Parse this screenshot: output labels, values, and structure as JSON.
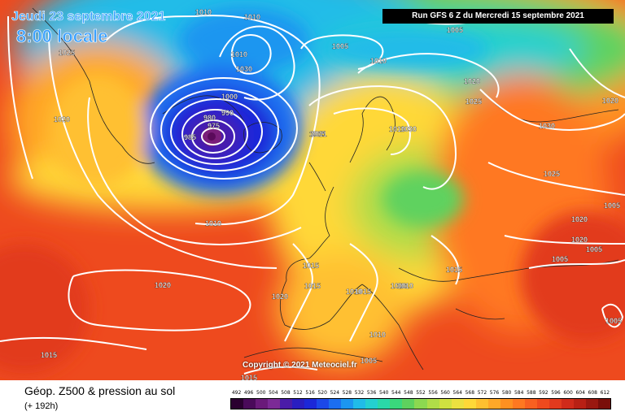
{
  "header": {
    "date_label": "Jeudi 23 septembre 2021",
    "time_label": "8:00 locale",
    "run_label": "Run GFS 6 Z du Mercredi 15 septembre 2021"
  },
  "map": {
    "copyright": "Copyright © 2021 Meteociel.fr",
    "isobar_labels": [
      "1010",
      "1025",
      "1020",
      "1010",
      "1020",
      "1005",
      "1010",
      "1020",
      "1025",
      "1030",
      "1015",
      "1010",
      "1010",
      "1015",
      "1020",
      "1030",
      "1025",
      "1020",
      "1005",
      "1005",
      "1015",
      "1005",
      "1015",
      "1020",
      "1015",
      "1010",
      "1010",
      "1010",
      "1005",
      "1005",
      "1015",
      "1020",
      "1015",
      "985",
      "975",
      "980",
      "990",
      "1000",
      "1010",
      "1011",
      "1010",
      "1030",
      "1005"
    ],
    "colors": {
      "low_center": "#7a1e7a",
      "deep_blue": "#1c1cc8",
      "cyan": "#20c8e8",
      "green": "#5ed25e",
      "yellow": "#ffe040",
      "orange": "#ff8c1e",
      "red": "#e8321e",
      "isobar": "#ffffff"
    }
  },
  "footer": {
    "title": "Géop. Z500 & pression au sol",
    "subtitle": "(+ 192h)",
    "scale_labels": [
      "492",
      "496",
      "500",
      "504",
      "508",
      "512",
      "516",
      "520",
      "524",
      "528",
      "532",
      "536",
      "540",
      "544",
      "548",
      "552",
      "556",
      "560",
      "564",
      "568",
      "572",
      "576",
      "580",
      "584",
      "588",
      "592",
      "596",
      "600",
      "604",
      "608",
      "612"
    ],
    "scale_colors": [
      "#2a0030",
      "#4a0a5a",
      "#6a1a7a",
      "#7c2a96",
      "#4a1ca8",
      "#2a1ec0",
      "#1c28d8",
      "#1c48e8",
      "#1c6ef0",
      "#1c96f0",
      "#20bce8",
      "#24d0d0",
      "#2ad8a8",
      "#3ad87c",
      "#5ed25e",
      "#8cd850",
      "#b0dc48",
      "#d0e040",
      "#ece040",
      "#ffd838",
      "#ffc030",
      "#ffa828",
      "#ff9020",
      "#ff7820",
      "#f86020",
      "#ee4a1e",
      "#e23a1e",
      "#d02a1a",
      "#b82014",
      "#9a1810",
      "#7a0e0a"
    ]
  }
}
